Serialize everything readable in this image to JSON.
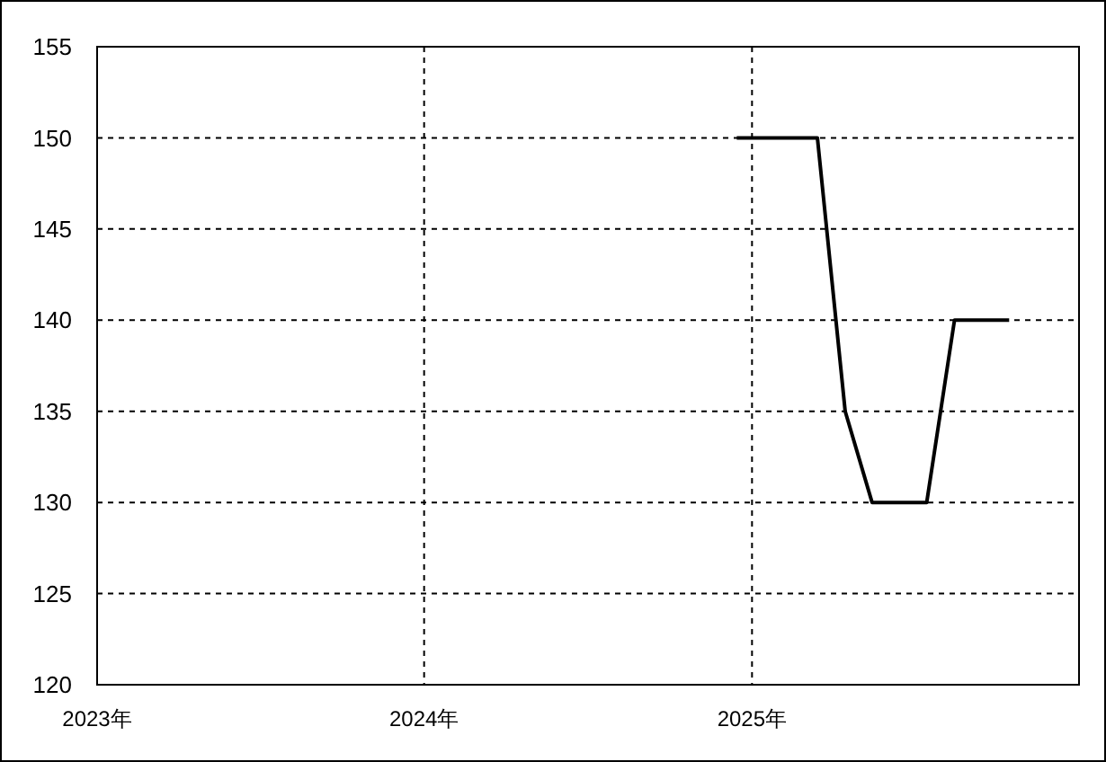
{
  "chart_data": {
    "type": "line",
    "x": [
      "2024-12-15",
      "2025-01-15",
      "2025-02-15",
      "2025-03-15",
      "2025-04-15",
      "2025-05-15",
      "2025-06-15",
      "2025-07-15",
      "2025-08-15",
      "2025-09-15",
      "2025-10-15"
    ],
    "values": [
      150,
      150,
      150,
      150,
      135,
      130,
      130,
      130,
      140,
      140,
      140
    ],
    "color": "#000000",
    "xlim": [
      "2023-01-01",
      "2026-01-01"
    ],
    "xticks": [
      {
        "value": "2023-01-01",
        "label": "2023年"
      },
      {
        "value": "2024-01-01",
        "label": "2024年"
      },
      {
        "value": "2025-01-01",
        "label": "2025年"
      }
    ],
    "ylim": [
      120,
      155
    ],
    "yticks": [
      120,
      125,
      130,
      135,
      140,
      145,
      150,
      155
    ],
    "grid": true
  }
}
